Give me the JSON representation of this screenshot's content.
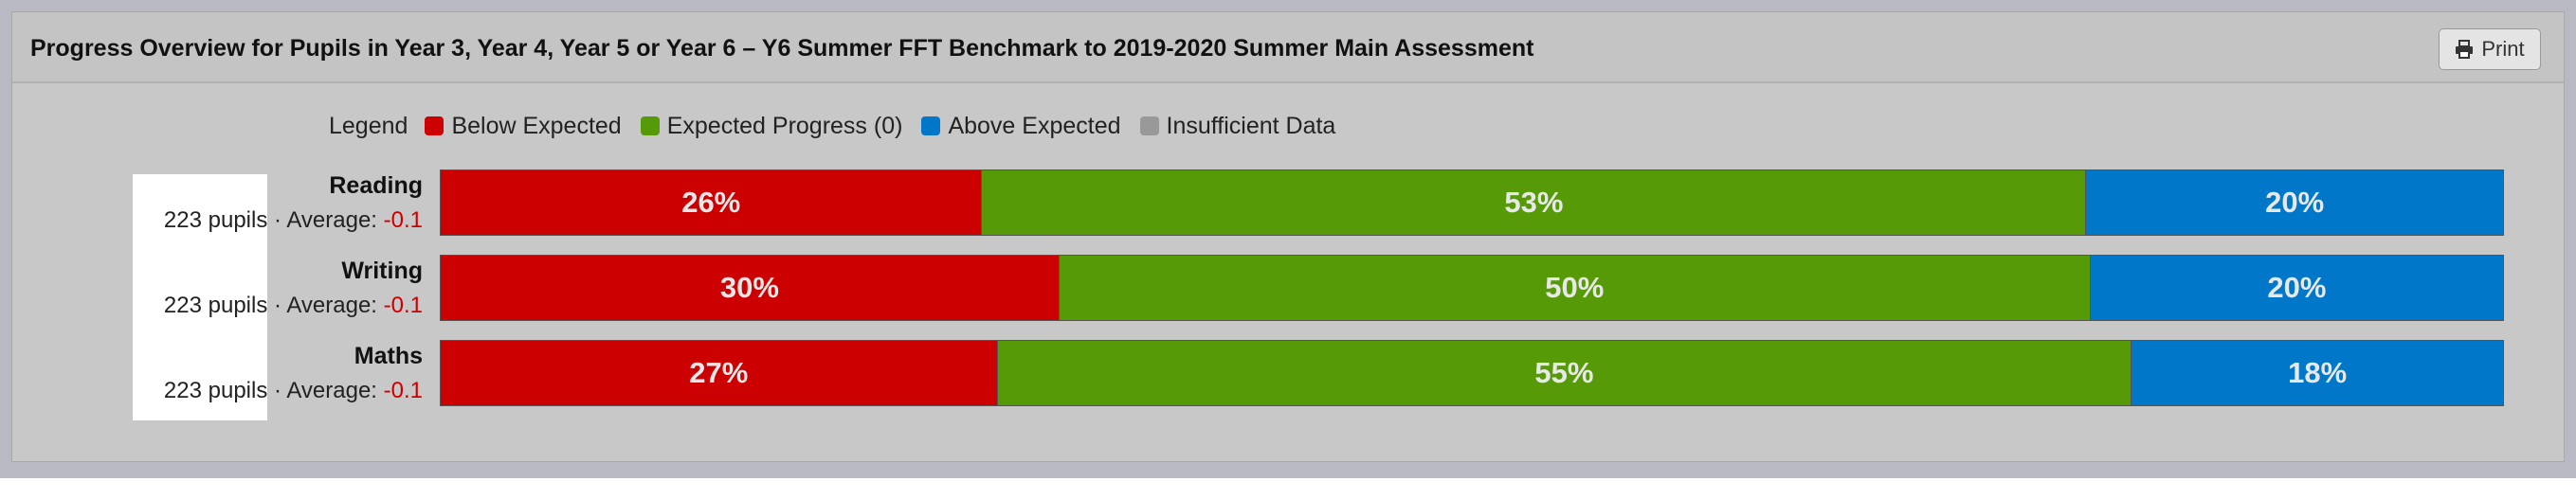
{
  "panel": {
    "title": "Progress Overview for Pupils in Year 3, Year 4, Year 5 or Year 6 – Y6 Summer FFT Benchmark to 2019-2020 Summer Main Assessment",
    "print_label": "Print",
    "print_icon": "printer-icon"
  },
  "colors": {
    "below": "#cc0000",
    "expected": "#569a08",
    "above": "#0077c8",
    "insufficient": "#999999"
  },
  "chart_data": {
    "type": "bar",
    "orientation": "horizontal",
    "stacked": true,
    "normalized": true,
    "legend_title": "Legend",
    "legend_position": "top",
    "categories": [
      "Reading",
      "Writing",
      "Maths"
    ],
    "pupils_text": [
      "223 pupils",
      "223 pupils",
      "223 pupils"
    ],
    "average_label": "· Average:",
    "average_values": [
      "-0.1",
      "-0.1",
      "-0.1"
    ],
    "series": [
      {
        "name": "Below Expected",
        "key": "below",
        "values": [
          26,
          30,
          27
        ],
        "labels": [
          "26%",
          "30%",
          "27%"
        ]
      },
      {
        "name": "Expected Progress (0)",
        "key": "expected",
        "values": [
          53,
          50,
          55
        ],
        "labels": [
          "53%",
          "50%",
          "55%"
        ]
      },
      {
        "name": "Above Expected",
        "key": "above",
        "values": [
          20,
          20,
          18
        ],
        "labels": [
          "20%",
          "20%",
          "18%"
        ]
      },
      {
        "name": "Insufficient Data",
        "key": "insufficient",
        "values": [
          0,
          0,
          0
        ],
        "labels": [
          "",
          "",
          ""
        ]
      }
    ]
  }
}
